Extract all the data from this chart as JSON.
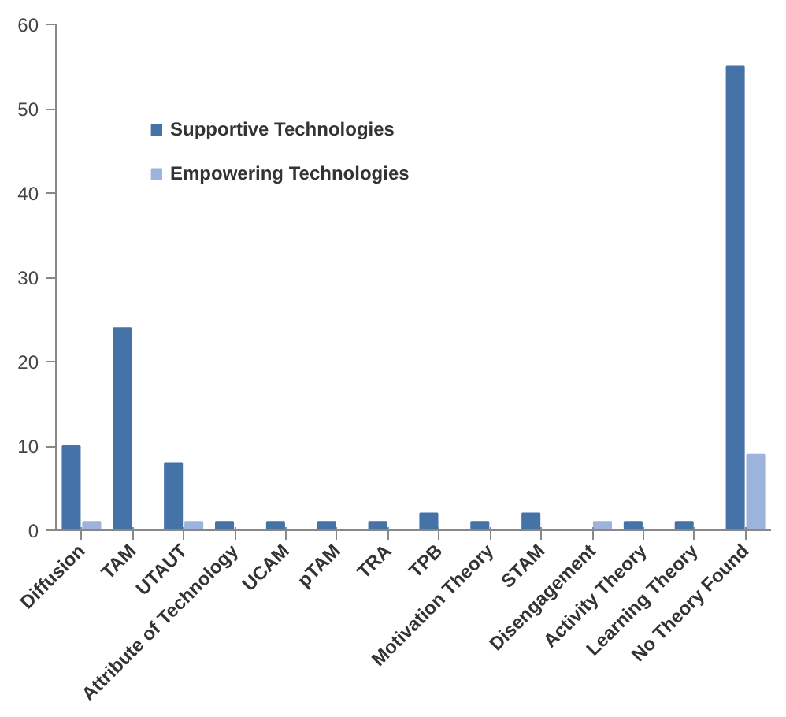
{
  "chart_data": {
    "type": "bar",
    "categories": [
      "Diffusion",
      "TAM",
      "UTAUT",
      "Attribute of Technology",
      "UCAM",
      "pTAM",
      "TRA",
      "TPB",
      "Motivation Theory",
      "STAM",
      "Disengagement",
      "Activity Theory",
      "Learning Theory",
      "No Theory Found"
    ],
    "series": [
      {
        "name": "Supportive Technologies",
        "color": "#4572a7",
        "values": [
          10,
          24,
          8,
          1,
          1,
          1,
          1,
          2,
          1,
          2,
          0,
          1,
          1,
          55
        ]
      },
      {
        "name": "Empowering Technologies",
        "color": "#9cb4db",
        "values": [
          1,
          0,
          1,
          0,
          0,
          0,
          0,
          0,
          0,
          0,
          1,
          0,
          0,
          9
        ]
      }
    ],
    "ylim": [
      0,
      60
    ],
    "yticks": [
      0,
      10,
      20,
      30,
      40,
      50,
      60
    ],
    "grid": false,
    "legend": "top left"
  }
}
